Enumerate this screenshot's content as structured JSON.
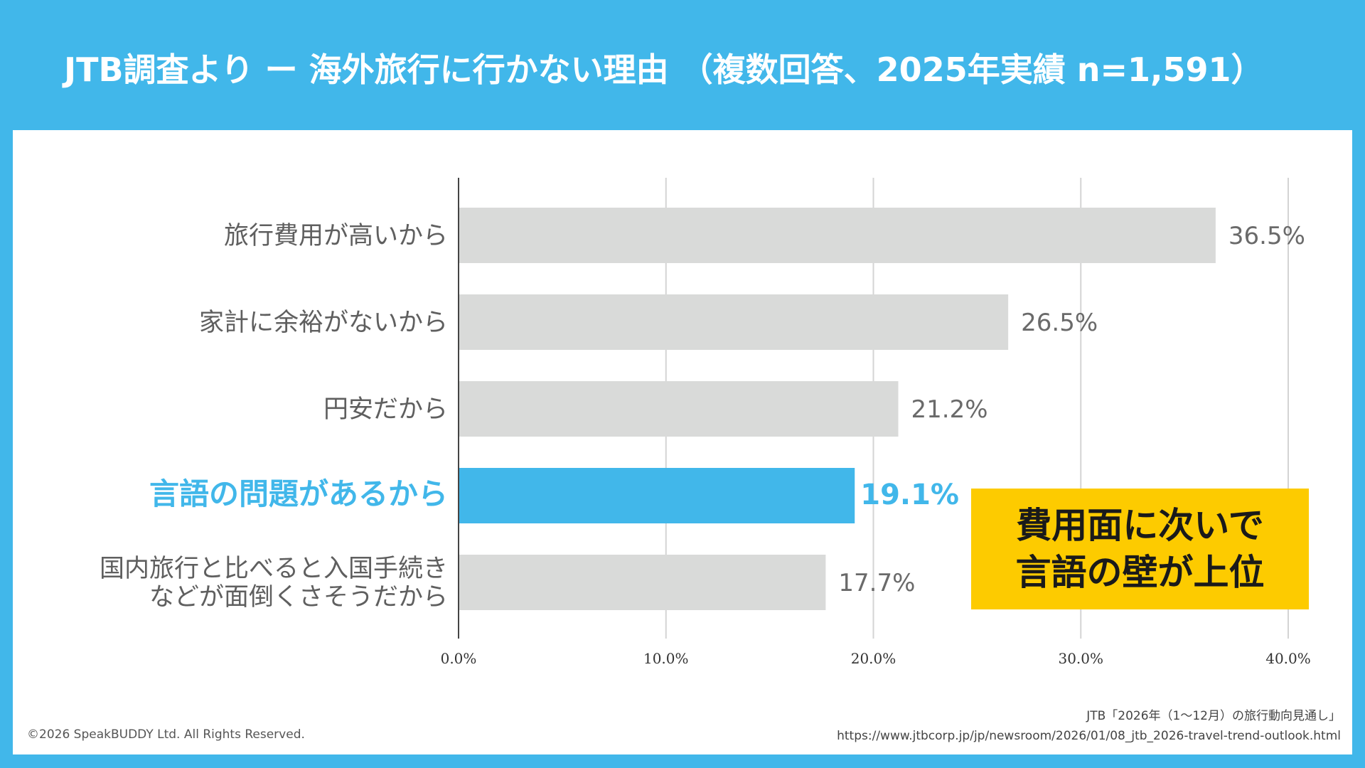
{
  "header": {
    "title": "JTB調査より ー 海外旅行に行かない理由 （複数回答、2025年実績 n=1,591）"
  },
  "chart_data": {
    "type": "bar",
    "orientation": "horizontal",
    "categories": [
      [
        "旅行費用が高いから"
      ],
      [
        "家計に余裕がないから"
      ],
      [
        "円安だから"
      ],
      [
        "言語の問題があるから"
      ],
      [
        "国内旅行と比べると入国手続き",
        "などが面倒くさそうだから"
      ]
    ],
    "values": [
      36.5,
      26.5,
      21.2,
      19.1,
      17.7
    ],
    "value_labels": [
      "36.5%",
      "26.5%",
      "21.2%",
      "19.1%",
      "17.7%"
    ],
    "highlight_index": 3,
    "xlim": [
      0,
      40
    ],
    "xticks": [
      0,
      10,
      20,
      30,
      40
    ],
    "xtick_labels": [
      "0.0%",
      "10.0%",
      "20.0%",
      "30.0%",
      "40.0%"
    ],
    "grid": true,
    "colors": {
      "bar": "#d9dad9",
      "highlight": "#41b7ea",
      "grid": "#d4d4d4",
      "axis": "#444444"
    }
  },
  "callout": {
    "lines": [
      "費用面に次いで",
      "言語の壁が上位"
    ],
    "color": "#fdcb00"
  },
  "footer": {
    "copyright": "©2026 SpeakBUDDY Ltd. All Rights Reserved.",
    "source_title": "JTB「2026年（1〜12月）の旅行動向見通し」",
    "source_url": "https://www.jtbcorp.jp/jp/newsroom/2026/01/08_jtb_2026-travel-trend-outlook.html"
  }
}
